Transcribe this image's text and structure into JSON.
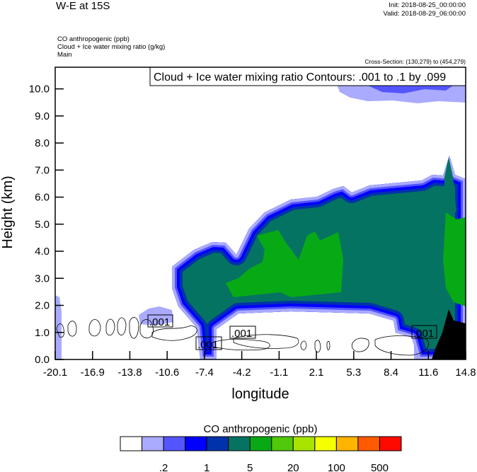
{
  "header": {
    "title": "W-E at 15S",
    "init": "Init: 2018-08-25_00:00:00",
    "valid": "Valid: 2018-08-29_06:00:00",
    "fields": [
      "CO anthropogenic   (ppb)",
      "Cloud + Ice water mixing ratio   (g/kg)",
      "Main"
    ],
    "cross_section": "Cross-Section: (130,279) to (454,279)"
  },
  "chart_data": {
    "type": "heatmap",
    "title": "W-E at 15S",
    "contour_info": "Cloud + Ice water mixing ratio Contours: .001 to .1 by .099",
    "contour_line_labels": [
      ".001",
      ".001",
      ".001",
      ".001"
    ],
    "xlabel": "longitude",
    "ylabel": "Height (km)",
    "x_ticks": [
      "-20.1",
      "-16.9",
      "-13.8",
      "-10.6",
      "-7.4",
      "-4.2",
      "-1.1",
      "2.1",
      "5.3",
      "8.4",
      "11.6",
      "14.8"
    ],
    "y_ticks": [
      "0.0",
      "1.0",
      "2.0",
      "3.0",
      "4.0",
      "5.0",
      "6.0",
      "7.0",
      "8.0",
      "9.0",
      "10.0"
    ],
    "xlim": [
      -20.1,
      14.8
    ],
    "ylim": [
      0,
      10.8
    ],
    "colorbar": {
      "title": "CO anthropogenic  (ppb)",
      "colors": [
        "#ffffff",
        "#aaaaff",
        "#5555ff",
        "#0000ff",
        "#0033aa",
        "#057362",
        "#07aa15",
        "#52c80a",
        "#a8e400",
        "#f5ff00",
        "#ffb400",
        "#ff5a00",
        "#ff0a00"
      ],
      "labels": [
        ".2",
        "1",
        "5",
        "20",
        "100",
        "500"
      ],
      "placement": "bottom"
    },
    "terrain_color": "#000000"
  }
}
